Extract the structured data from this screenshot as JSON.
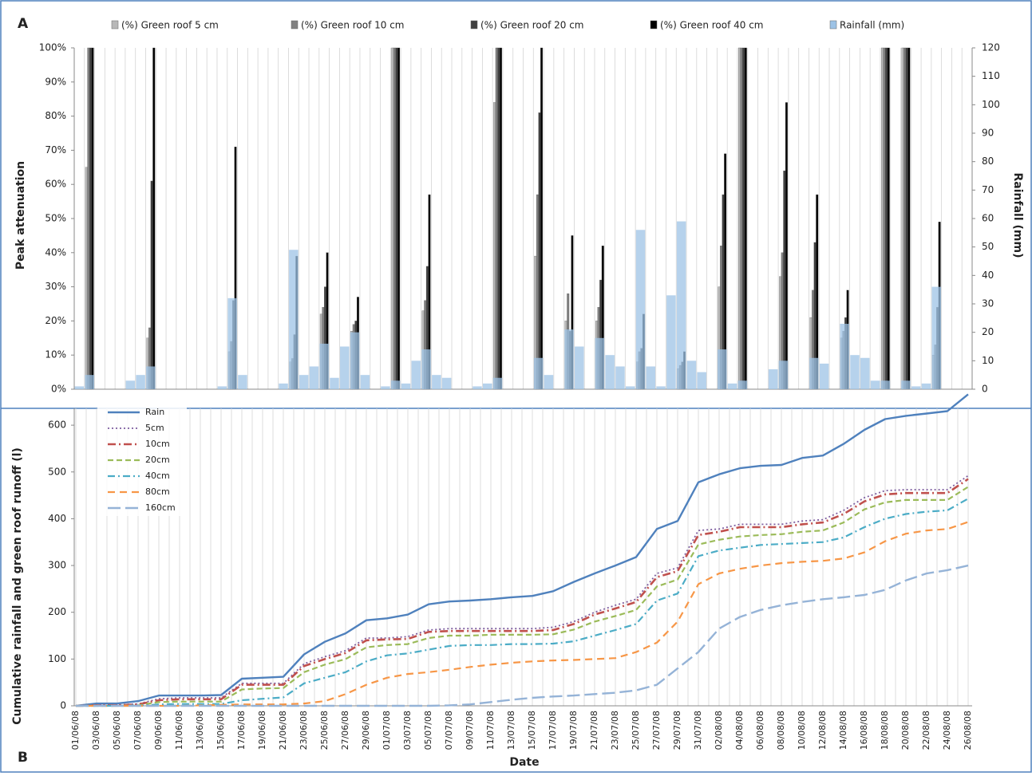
{
  "chart_data": [
    {
      "type": "bar",
      "panel": "A",
      "ylabel": "Peak attenuation",
      "y2label": "Rainfall (mm)",
      "categories": [
        null,
        null,
        null,
        null,
        null,
        null,
        null,
        null,
        null,
        null,
        null,
        null,
        null,
        null,
        null,
        null,
        null,
        null,
        null,
        null,
        null,
        null,
        null,
        null,
        null,
        null,
        null,
        null,
        null,
        null,
        null,
        null,
        null,
        null,
        null,
        null,
        null,
        null,
        null,
        null,
        null,
        null,
        null,
        null,
        null,
        null,
        null,
        null,
        null,
        null,
        null,
        null,
        null,
        null,
        null,
        null,
        null,
        null,
        null,
        null,
        null,
        null,
        null,
        null,
        null,
        null,
        null,
        null,
        null,
        null,
        null,
        null,
        null,
        null,
        null,
        null,
        null,
        null,
        null,
        null,
        null,
        null,
        null,
        null,
        null,
        null,
        null,
        null
      ],
      "ylim": [
        0,
        100
      ],
      "yticks": [
        {
          "value": 0,
          "label": "0%"
        },
        {
          "value": 10,
          "label": "10%"
        },
        {
          "value": 20,
          "label": "20%"
        },
        {
          "value": 30,
          "label": "30%"
        },
        {
          "value": 40,
          "label": "40%"
        },
        {
          "value": 50,
          "label": "50%"
        },
        {
          "value": 60,
          "label": "60%"
        },
        {
          "value": 70,
          "label": "70%"
        },
        {
          "value": 80,
          "label": "80%"
        },
        {
          "value": 90,
          "label": "90%"
        },
        {
          "value": 100,
          "label": "100%"
        }
      ],
      "y2lim": [
        0,
        120
      ],
      "y2ticks": [
        0,
        10,
        20,
        30,
        40,
        50,
        60,
        70,
        80,
        90,
        100,
        110,
        120
      ],
      "grid": "x",
      "legend": "top",
      "series": [
        {
          "name": "(%) Green roof 5 cm",
          "color": "#b8b8b8",
          "values": [
            null,
            65,
            null,
            null,
            null,
            null,
            null,
            15,
            null,
            null,
            null,
            null,
            null,
            null,
            null,
            11,
            null,
            null,
            null,
            null,
            null,
            8,
            null,
            null,
            22,
            null,
            null,
            17,
            null,
            null,
            null,
            100,
            null,
            null,
            23,
            null,
            null,
            null,
            null,
            null,
            null,
            84,
            null,
            null,
            null,
            39,
            null,
            null,
            20,
            null,
            null,
            20,
            null,
            null,
            null,
            8,
            null,
            null,
            null,
            6,
            null,
            null,
            null,
            30,
            null,
            100,
            null,
            null,
            null,
            33,
            null,
            null,
            21,
            null,
            null,
            15,
            null,
            null,
            null,
            100,
            null,
            100,
            null,
            null,
            10,
            null,
            null,
            null
          ]
        },
        {
          "name": "(%) Green roof 10 cm",
          "color": "#808080",
          "values": [
            null,
            100,
            null,
            null,
            null,
            null,
            null,
            18,
            null,
            null,
            null,
            null,
            null,
            null,
            null,
            14,
            null,
            null,
            null,
            null,
            null,
            9,
            null,
            null,
            24,
            null,
            null,
            19,
            null,
            null,
            null,
            100,
            null,
            null,
            26,
            null,
            null,
            null,
            null,
            null,
            null,
            100,
            null,
            null,
            null,
            57,
            null,
            null,
            28,
            null,
            null,
            24,
            null,
            null,
            null,
            11,
            null,
            null,
            null,
            7,
            null,
            null,
            null,
            42,
            null,
            100,
            null,
            null,
            null,
            40,
            null,
            null,
            29,
            null,
            null,
            17,
            null,
            null,
            null,
            100,
            null,
            100,
            null,
            null,
            13,
            null,
            null,
            null
          ]
        },
        {
          "name": "(%) Green roof 20 cm",
          "color": "#404040",
          "values": [
            null,
            100,
            null,
            null,
            null,
            null,
            null,
            61,
            null,
            null,
            null,
            null,
            null,
            null,
            null,
            26,
            null,
            null,
            null,
            null,
            null,
            16,
            null,
            null,
            30,
            null,
            null,
            20,
            null,
            null,
            null,
            100,
            null,
            null,
            36,
            null,
            null,
            null,
            null,
            null,
            null,
            100,
            null,
            null,
            null,
            81,
            null,
            null,
            17,
            null,
            null,
            32,
            null,
            null,
            null,
            12,
            null,
            null,
            null,
            8,
            null,
            null,
            null,
            57,
            null,
            100,
            null,
            null,
            null,
            64,
            null,
            null,
            43,
            null,
            null,
            21,
            null,
            null,
            null,
            100,
            null,
            100,
            null,
            null,
            24,
            null,
            null,
            null
          ]
        },
        {
          "name": "(%) Green roof 40 cm",
          "color": "#000000",
          "values": [
            null,
            100,
            null,
            null,
            null,
            null,
            null,
            100,
            null,
            null,
            null,
            null,
            null,
            null,
            null,
            71,
            null,
            null,
            null,
            null,
            null,
            39,
            null,
            null,
            40,
            null,
            null,
            27,
            null,
            null,
            null,
            100,
            null,
            null,
            57,
            null,
            null,
            null,
            null,
            null,
            null,
            100,
            null,
            null,
            null,
            100,
            null,
            null,
            45,
            null,
            null,
            42,
            null,
            null,
            null,
            22,
            null,
            null,
            null,
            11,
            null,
            null,
            null,
            69,
            null,
            100,
            null,
            null,
            null,
            84,
            null,
            null,
            57,
            null,
            null,
            29,
            null,
            null,
            null,
            100,
            null,
            100,
            null,
            null,
            49,
            null,
            null,
            null
          ]
        },
        {
          "name": "Rainfall (mm)",
          "color": "#9dc3e6",
          "axis": "y2",
          "values": [
            1,
            5,
            0,
            0,
            0,
            3,
            5,
            8,
            0,
            0,
            0,
            0,
            0,
            0,
            1,
            32,
            5,
            0,
            0,
            0,
            2,
            49,
            5,
            8,
            16,
            4,
            15,
            20,
            5,
            0,
            1,
            3,
            2,
            10,
            14,
            5,
            4,
            0,
            0,
            1,
            2,
            4,
            0,
            0,
            0,
            11,
            5,
            0,
            21,
            15,
            0,
            18,
            12,
            8,
            1,
            56,
            8,
            1,
            33,
            59,
            10,
            6,
            0,
            14,
            2,
            3,
            0,
            0,
            7,
            10,
            0,
            0,
            11,
            9,
            0,
            23,
            12,
            11,
            3,
            3,
            0,
            3,
            1,
            2,
            36,
            0,
            0,
            0
          ]
        }
      ]
    },
    {
      "type": "line",
      "panel": "B",
      "xlabel": "Date",
      "ylabel": "Cumulative rainfall and green roof runoff (l)",
      "categories": [
        "01/06/08",
        "03/06/08",
        "05/06/08",
        "07/06/08",
        "09/06/08",
        "11/06/08",
        "13/06/08",
        "15/06/08",
        "17/06/08",
        "19/06/08",
        "21/06/08",
        "23/06/08",
        "25/06/08",
        "27/06/08",
        "29/06/08",
        "01/07/08",
        "03/07/08",
        "05/07/08",
        "07/07/08",
        "09/07/08",
        "11/07/08",
        "13/07/08",
        "15/07/08",
        "17/07/08",
        "19/07/08",
        "21/07/08",
        "23/07/08",
        "25/07/08",
        "27/07/08",
        "29/07/08",
        "31/07/08",
        "02/08/08",
        "04/08/08",
        "06/08/08",
        "08/08/08",
        "10/08/08",
        "12/08/08",
        "14/08/08",
        "16/08/08",
        "18/08/08",
        "20/08/08",
        "22/08/08",
        "24/08/08",
        "26/08/08"
      ],
      "ylim": [
        0,
        636
      ],
      "yticks": [
        0,
        100,
        200,
        300,
        400,
        500,
        600
      ],
      "grid": "x",
      "legend": "upper left",
      "series": [
        {
          "name": "Rain",
          "color": "#4f81bd",
          "values": [
            0,
            5,
            5,
            10,
            22,
            22,
            22,
            23,
            58,
            60,
            62,
            110,
            137,
            155,
            183,
            187,
            195,
            217,
            223,
            225,
            228,
            232,
            235,
            245,
            265,
            283,
            300,
            318,
            378,
            395,
            478,
            495,
            508,
            513,
            515,
            530,
            535,
            560,
            590,
            613,
            620,
            625,
            630,
            666
          ]
        },
        {
          "name": "5cm",
          "color": "#7f5fa0",
          "values": [
            0,
            2,
            2,
            4,
            15,
            17,
            17,
            17,
            48,
            48,
            48,
            90,
            105,
            118,
            145,
            145,
            148,
            162,
            165,
            165,
            165,
            165,
            165,
            168,
            180,
            200,
            215,
            228,
            283,
            295,
            375,
            378,
            388,
            388,
            388,
            395,
            398,
            418,
            445,
            460,
            462,
            462,
            462,
            492
          ]
        },
        {
          "name": "10cm",
          "color": "#c0504d",
          "values": [
            0,
            1,
            1,
            3,
            12,
            14,
            14,
            14,
            45,
            45,
            45,
            85,
            100,
            113,
            140,
            142,
            143,
            158,
            160,
            160,
            160,
            160,
            160,
            162,
            175,
            195,
            208,
            222,
            275,
            288,
            365,
            372,
            382,
            382,
            382,
            388,
            392,
            410,
            437,
            452,
            455,
            455,
            455,
            485
          ]
        },
        {
          "name": "20cm",
          "color": "#9bbb59",
          "values": [
            0,
            0,
            0,
            1,
            8,
            9,
            9,
            9,
            35,
            37,
            38,
            72,
            88,
            100,
            125,
            130,
            132,
            145,
            150,
            150,
            152,
            152,
            152,
            153,
            163,
            180,
            192,
            205,
            255,
            270,
            345,
            355,
            362,
            365,
            367,
            372,
            375,
            392,
            420,
            435,
            440,
            440,
            440,
            468
          ]
        },
        {
          "name": "40cm",
          "color": "#4bacc6",
          "values": [
            0,
            0,
            0,
            0,
            3,
            4,
            4,
            4,
            12,
            15,
            18,
            48,
            60,
            72,
            95,
            108,
            112,
            120,
            128,
            130,
            130,
            132,
            132,
            133,
            138,
            150,
            162,
            175,
            225,
            240,
            320,
            332,
            338,
            344,
            346,
            348,
            350,
            360,
            382,
            400,
            410,
            415,
            418,
            443
          ]
        },
        {
          "name": "80cm",
          "color": "#f79646",
          "values": [
            0,
            0,
            0,
            0,
            0,
            0,
            1,
            2,
            3,
            3,
            3,
            5,
            10,
            25,
            45,
            60,
            68,
            72,
            77,
            83,
            88,
            92,
            95,
            97,
            98,
            100,
            102,
            115,
            135,
            180,
            260,
            283,
            293,
            300,
            305,
            308,
            310,
            315,
            328,
            352,
            368,
            375,
            378,
            393
          ]
        },
        {
          "name": "160cm",
          "color": "#95b3d7",
          "values": [
            0,
            0,
            0,
            0,
            0,
            0,
            0,
            0,
            0,
            0,
            0,
            0,
            0,
            0,
            0,
            0,
            0,
            0,
            1,
            3,
            8,
            13,
            17,
            20,
            22,
            25,
            28,
            33,
            45,
            80,
            115,
            165,
            190,
            205,
            215,
            222,
            228,
            232,
            237,
            248,
            268,
            283,
            290,
            300
          ]
        }
      ]
    }
  ]
}
